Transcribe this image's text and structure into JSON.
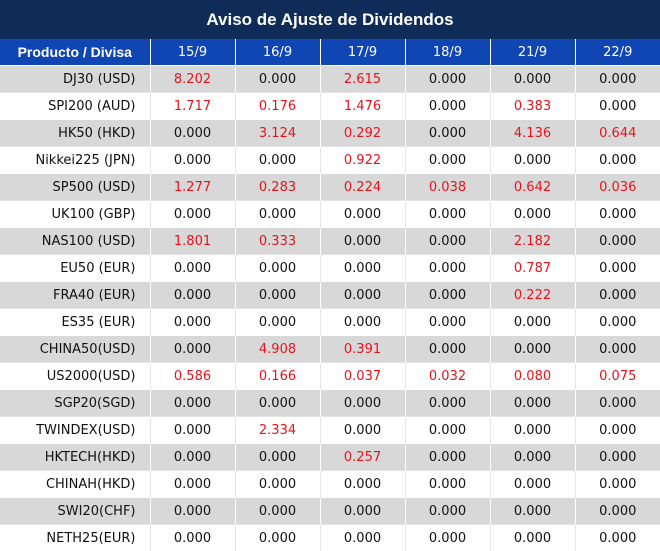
{
  "title": "Aviso de Ajuste de Dividendos",
  "header": {
    "product_label": "Producto / Divisa",
    "dates": [
      "15/9",
      "16/9",
      "17/9",
      "18/9",
      "21/9",
      "22/9"
    ]
  },
  "rows": [
    {
      "product": "DJ30 (USD)",
      "values": [
        "8.202",
        "0.000",
        "2.615",
        "0.000",
        "0.000",
        "0.000"
      ]
    },
    {
      "product": "SPI200 (AUD)",
      "values": [
        "1.717",
        "0.176",
        "1.476",
        "0.000",
        "0.383",
        "0.000"
      ]
    },
    {
      "product": "HK50 (HKD)",
      "values": [
        "0.000",
        "3.124",
        "0.292",
        "0.000",
        "4.136",
        "0.644"
      ]
    },
    {
      "product": "Nikkei225 (JPN)",
      "values": [
        "0.000",
        "0.000",
        "0.922",
        "0.000",
        "0.000",
        "0.000"
      ]
    },
    {
      "product": "SP500 (USD)",
      "values": [
        "1.277",
        "0.283",
        "0.224",
        "0.038",
        "0.642",
        "0.036"
      ]
    },
    {
      "product": "UK100 (GBP)",
      "values": [
        "0.000",
        "0.000",
        "0.000",
        "0.000",
        "0.000",
        "0.000"
      ]
    },
    {
      "product": "NAS100 (USD)",
      "values": [
        "1.801",
        "0.333",
        "0.000",
        "0.000",
        "2.182",
        "0.000"
      ]
    },
    {
      "product": "EU50 (EUR)",
      "values": [
        "0.000",
        "0.000",
        "0.000",
        "0.000",
        "0.787",
        "0.000"
      ]
    },
    {
      "product": "FRA40 (EUR)",
      "values": [
        "0.000",
        "0.000",
        "0.000",
        "0.000",
        "0.222",
        "0.000"
      ]
    },
    {
      "product": "ES35 (EUR)",
      "values": [
        "0.000",
        "0.000",
        "0.000",
        "0.000",
        "0.000",
        "0.000"
      ]
    },
    {
      "product": "CHINA50(USD)",
      "values": [
        "0.000",
        "4.908",
        "0.391",
        "0.000",
        "0.000",
        "0.000"
      ]
    },
    {
      "product": "US2000(USD)",
      "values": [
        "0.586",
        "0.166",
        "0.037",
        "0.032",
        "0.080",
        "0.075"
      ]
    },
    {
      "product": "SGP20(SGD)",
      "values": [
        "0.000",
        "0.000",
        "0.000",
        "0.000",
        "0.000",
        "0.000"
      ]
    },
    {
      "product": "TWINDEX(USD)",
      "values": [
        "0.000",
        "2.334",
        "0.000",
        "0.000",
        "0.000",
        "0.000"
      ]
    },
    {
      "product": "HKTECH(HKD)",
      "values": [
        "0.000",
        "0.000",
        "0.257",
        "0.000",
        "0.000",
        "0.000"
      ]
    },
    {
      "product": "CHINAH(HKD)",
      "values": [
        "0.000",
        "0.000",
        "0.000",
        "0.000",
        "0.000",
        "0.000"
      ]
    },
    {
      "product": "SWI20(CHF)",
      "values": [
        "0.000",
        "0.000",
        "0.000",
        "0.000",
        "0.000",
        "0.000"
      ]
    },
    {
      "product": "NETH25(EUR)",
      "values": [
        "0.000",
        "0.000",
        "0.000",
        "0.000",
        "0.000",
        "0.000"
      ]
    }
  ],
  "colors": {
    "title_bg": "#0f2b57",
    "header_bg": "#1046b4",
    "stripe": "#d8d8d8",
    "nonzero_text": "#e8141b",
    "zero_text": "#111111"
  }
}
